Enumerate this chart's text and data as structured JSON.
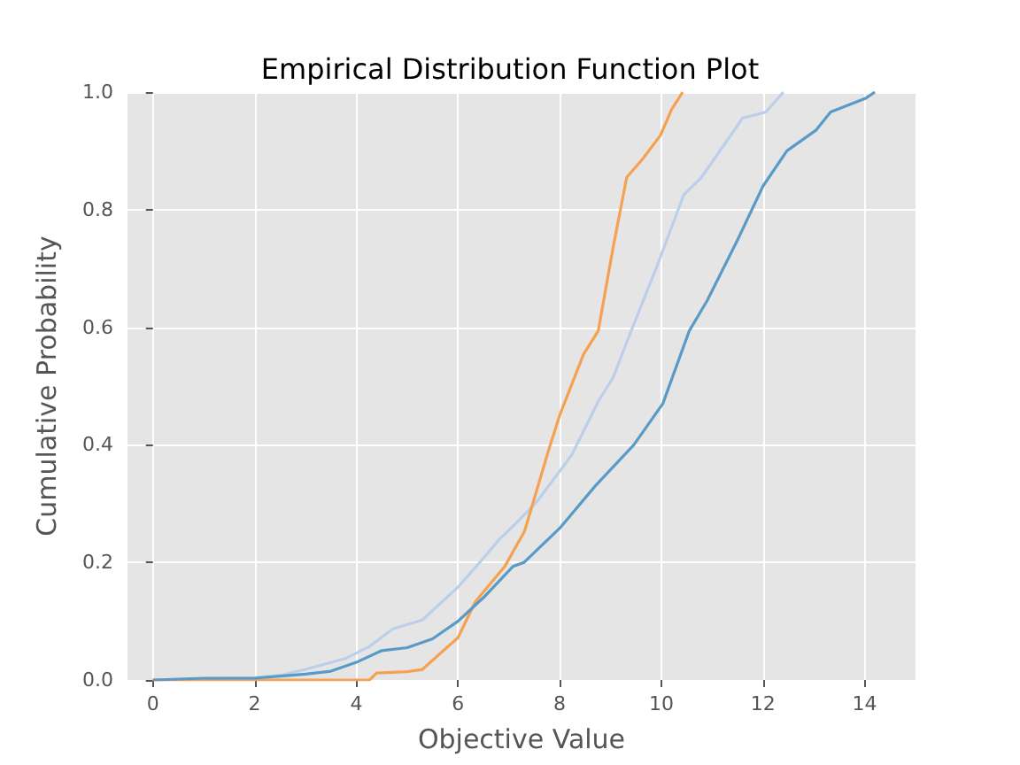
{
  "chart_data": {
    "type": "line",
    "title": "Empirical Distribution Function Plot",
    "xlabel": "Objective Value",
    "ylabel": "Cumulative Probability",
    "series": [
      {
        "color": "#bccfea",
        "x": [
          0,
          1,
          2,
          2.5,
          3.0,
          3.8,
          4.26,
          4.72,
          5.3,
          6.0,
          6.46,
          6.8,
          7.1,
          7.55,
          8.24,
          8.76,
          9.05,
          9.34,
          9.92,
          10.44,
          10.79,
          11.6,
          12.06,
          12.4
        ],
        "values": [
          0,
          0.002,
          0.004,
          0.008,
          0.018,
          0.037,
          0.057,
          0.087,
          0.102,
          0.158,
          0.203,
          0.238,
          0.263,
          0.303,
          0.383,
          0.474,
          0.514,
          0.579,
          0.705,
          0.825,
          0.855,
          0.956,
          0.966,
          1.0
        ]
      },
      {
        "color": "#f5a14f",
        "x": [
          0,
          4.26,
          4.4,
          5.0,
          5.3,
          6.0,
          6.34,
          6.92,
          7.31,
          7.78,
          8.0,
          8.47,
          8.76,
          9.05,
          9.32,
          9.63,
          9.98,
          10.2,
          10.42
        ],
        "values": [
          0,
          0,
          0.012,
          0.014,
          0.018,
          0.072,
          0.133,
          0.193,
          0.253,
          0.39,
          0.45,
          0.554,
          0.594,
          0.735,
          0.855,
          0.886,
          0.926,
          0.97,
          1.0
        ]
      },
      {
        "color": "#5a9ac6",
        "x": [
          0,
          1,
          2,
          3,
          3.5,
          4,
          4.5,
          5,
          5.5,
          6,
          6.5,
          7.08,
          7.3,
          8.0,
          8.7,
          9.46,
          10.03,
          10.55,
          10.9,
          11.48,
          12.0,
          12.47,
          13.04,
          13.33,
          14.03,
          14.2
        ],
        "values": [
          0,
          0.003,
          0.003,
          0.01,
          0.015,
          0.03,
          0.05,
          0.055,
          0.07,
          0.1,
          0.14,
          0.193,
          0.2,
          0.258,
          0.33,
          0.4,
          0.47,
          0.594,
          0.645,
          0.745,
          0.84,
          0.9,
          0.935,
          0.966,
          0.99,
          1.0
        ]
      }
    ],
    "xlim": [
      -0.5,
      15
    ],
    "xticks": [
      0,
      2,
      4,
      6,
      8,
      10,
      12,
      14
    ],
    "ylim": [
      0,
      1
    ],
    "yticks": [
      {
        "value": 0,
        "label": "0.0"
      },
      {
        "value": 0.2,
        "label": "0.2"
      },
      {
        "value": 0.4,
        "label": "0.4"
      },
      {
        "value": 0.6,
        "label": "0.6"
      },
      {
        "value": 0.8,
        "label": "0.8"
      },
      {
        "value": 1,
        "label": "1.0"
      }
    ],
    "grid": true,
    "marker": "none",
    "line_style": "solid"
  }
}
